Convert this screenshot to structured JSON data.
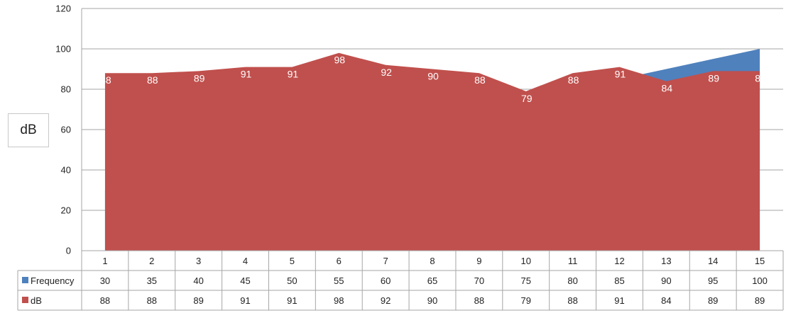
{
  "chart_data": {
    "type": "area",
    "ylabel": "dB",
    "ylim": [
      0,
      120
    ],
    "yticks": [
      0,
      20,
      40,
      60,
      80,
      100,
      120
    ],
    "categories": [
      "1",
      "2",
      "3",
      "4",
      "5",
      "6",
      "7",
      "8",
      "9",
      "10",
      "11",
      "12",
      "13",
      "14",
      "15"
    ],
    "series": [
      {
        "name": "Frequency",
        "color": "#4f81bd",
        "values": [
          30,
          35,
          40,
          45,
          50,
          55,
          60,
          65,
          70,
          75,
          80,
          85,
          90,
          95,
          100
        ]
      },
      {
        "name": "dB",
        "color": "#c0504d",
        "values": [
          88,
          88,
          89,
          91,
          91,
          98,
          92,
          90,
          88,
          79,
          88,
          91,
          84,
          89,
          89
        ]
      }
    ],
    "data_labels_series": "dB",
    "grid": true,
    "legend": "data-table-below"
  }
}
